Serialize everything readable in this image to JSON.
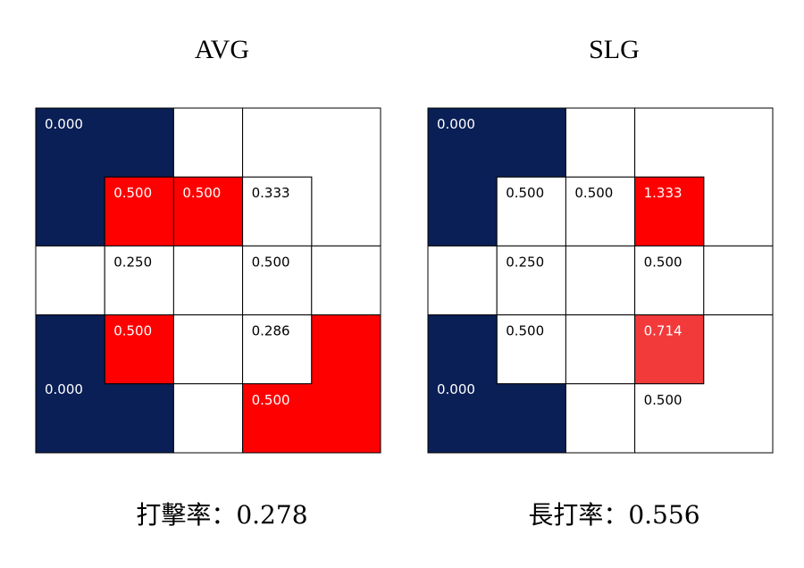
{
  "panels": [
    {
      "title": "AVG",
      "summary": "打擊率：0.278",
      "cells": [
        "0.000",
        "0.500",
        "0.500",
        "0.333",
        "0.250",
        "0.500",
        "0.500",
        "0.286",
        "0.000",
        "0.500"
      ]
    },
    {
      "title": "SLG",
      "summary": "長打率：0.556",
      "cells": [
        "0.000",
        "0.500",
        "0.500",
        "1.333",
        "0.250",
        "0.500",
        "0.500",
        "0.714",
        "0.000",
        "0.500"
      ]
    }
  ]
}
